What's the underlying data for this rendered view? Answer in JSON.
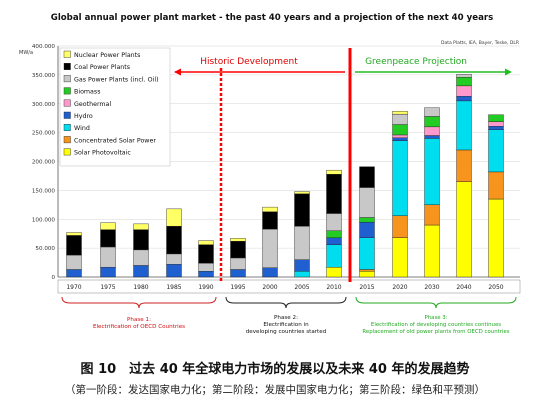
{
  "chart_data": {
    "type": "bar",
    "stacked": true,
    "title": "Global annual power plant market - the past 40 years and a projection of the next 40 years",
    "source": "Data Platts, IEA, Bayer, Teske, DLR",
    "ylabel": "MW/a",
    "ylim": [
      0,
      400000
    ],
    "yticks": [
      0,
      50000,
      100000,
      150000,
      200000,
      250000,
      300000,
      350000,
      400000
    ],
    "ytick_labels": [
      "0",
      "50.000",
      "100.000",
      "150.000",
      "200.000",
      "250.000",
      "300.000",
      "350.000",
      "400.000"
    ],
    "grid": true,
    "legend_placement": "top-left",
    "categories": [
      "1970",
      "1975",
      "1980",
      "1985",
      "1990",
      "1995",
      "2000",
      "2005",
      "2010",
      "2015",
      "2020",
      "2030",
      "2040",
      "2050"
    ],
    "series": [
      {
        "name": "Solar Photovoltaic",
        "color": "#ffff00",
        "values": [
          0,
          0,
          0,
          0,
          0,
          0,
          0,
          0,
          17000,
          10000,
          68000,
          90000,
          165000,
          135000
        ]
      },
      {
        "name": "Concentrated Solar Power",
        "color": "#f7941d",
        "values": [
          0,
          0,
          0,
          0,
          0,
          0,
          0,
          0,
          0,
          3000,
          38000,
          35000,
          55000,
          47000
        ]
      },
      {
        "name": "Wind",
        "color": "#00ddee",
        "values": [
          0,
          0,
          0,
          0,
          0,
          0,
          0,
          10000,
          39000,
          55000,
          130000,
          115000,
          85000,
          73000
        ]
      },
      {
        "name": "Hydro",
        "color": "#1f5fcf",
        "values": [
          13000,
          17000,
          20000,
          22000,
          10000,
          13000,
          16000,
          20000,
          12000,
          27000,
          5000,
          5000,
          8000,
          6000
        ]
      },
      {
        "name": "Geothermal",
        "color": "#ff99cc",
        "values": [
          0,
          0,
          0,
          0,
          0,
          0,
          0,
          0,
          0,
          0,
          5000,
          15000,
          18000,
          8000
        ]
      },
      {
        "name": "Biomass",
        "color": "#22cc22",
        "values": [
          0,
          0,
          0,
          0,
          0,
          0,
          0,
          0,
          12000,
          8000,
          18000,
          18000,
          15000,
          12000
        ]
      },
      {
        "name": "Gas Power Plants (incl. Oil)",
        "color": "#c8c8c8",
        "values": [
          25000,
          35000,
          27000,
          18000,
          14000,
          20000,
          67000,
          58000,
          30000,
          52000,
          18000,
          15000,
          5000,
          0
        ]
      },
      {
        "name": "Coal Power Plants",
        "color": "#000000",
        "values": [
          34000,
          30000,
          35000,
          48000,
          32000,
          29000,
          30000,
          56000,
          68000,
          36000,
          0,
          0,
          0,
          0
        ]
      },
      {
        "name": "Nuclear Power Plants",
        "color": "#ffff66",
        "values": [
          5000,
          12000,
          10000,
          30000,
          7000,
          5000,
          8000,
          4000,
          7000,
          0,
          5000,
          0,
          0,
          0
        ]
      }
    ],
    "annotations": {
      "historic": "Historic Development",
      "projection": "Greenpeace Projection",
      "phase1": [
        "Phase 1:",
        "Electrification of OECD Countries"
      ],
      "phase2": [
        "Phase 2:",
        "Electrification in",
        "developing countries started"
      ],
      "phase3": [
        "Phase 3:",
        "Electrification of developing countries continues",
        "Replacement of old power plants from OECD countries"
      ]
    }
  },
  "caption": {
    "title": "图 10　过去 40 年全球电力市场的发展以及未来 40 年的发展趋势",
    "subtitle": "（第一阶段：发达国家电力化；第二阶段：发展中国家电力化；第三阶段：绿色和平预测）"
  }
}
